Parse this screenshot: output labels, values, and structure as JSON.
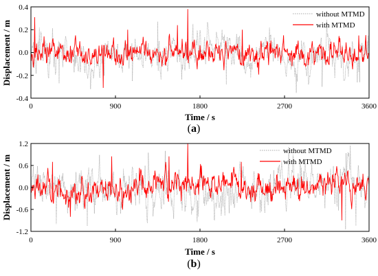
{
  "colors": {
    "without": "#a8a8a8",
    "with": "#ff0000",
    "axis": "#000000"
  },
  "chart_data": [
    {
      "type": "line",
      "caption_pre": "(",
      "caption_letter": "a",
      "caption_post": ")",
      "xlabel": "Time / s",
      "ylabel": "Displacement / m",
      "xlim": [
        0,
        3600
      ],
      "ylim": [
        -0.4,
        0.4
      ],
      "xticks": [
        "0",
        "900",
        "1800",
        "2700",
        "3600"
      ],
      "yticks": [
        "-0.4",
        "-0.2",
        "0.0",
        "0.2",
        "0.4"
      ],
      "grid": false,
      "legend_position": "top-right",
      "amp_without": 0.115,
      "amp_with": 0.072,
      "peaks_with": [
        [
          40,
          0.31
        ],
        [
          770,
          -0.31
        ],
        [
          1670,
          0.38
        ],
        [
          1560,
          0.24
        ],
        [
          1030,
          0.2
        ],
        [
          2250,
          0.2
        ],
        [
          3490,
          0.15
        ]
      ],
      "peaks_without": [
        [
          40,
          0.3
        ],
        [
          300,
          -0.27
        ],
        [
          1080,
          -0.25
        ],
        [
          3100,
          -0.3
        ],
        [
          2080,
          -0.28
        ],
        [
          3500,
          -0.26
        ],
        [
          1350,
          0.27
        ]
      ],
      "series": [
        {
          "name": "without MTMD",
          "style": "dotted"
        },
        {
          "name": "with MTMD",
          "style": "solid"
        }
      ]
    },
    {
      "type": "line",
      "caption_pre": "(",
      "caption_letter": "b",
      "caption_post": ")",
      "xlabel": "Time / s",
      "ylabel": "Displacement / m",
      "xlim": [
        0,
        3600
      ],
      "ylim": [
        -1.2,
        1.2
      ],
      "xticks": [
        "0",
        "900",
        "1800",
        "2700",
        "3600"
      ],
      "yticks": [
        "-1.2",
        "-0.6",
        "0.0",
        "0.6",
        "1.2"
      ],
      "grid": false,
      "legend_position": "top-right",
      "amp_without": 0.42,
      "amp_with": 0.25,
      "peaks_with": [
        [
          860,
          0.85
        ],
        [
          1670,
          1.2
        ],
        [
          1470,
          0.85
        ],
        [
          2240,
          0.7
        ],
        [
          420,
          -0.8
        ],
        [
          3310,
          -0.9
        ],
        [
          230,
          0.7
        ]
      ],
      "peaks_without": [
        [
          3400,
          1.15
        ],
        [
          3350,
          -1.15
        ],
        [
          1250,
          0.95
        ],
        [
          600,
          -1.05
        ],
        [
          3460,
          -1.05
        ],
        [
          1430,
          1.0
        ],
        [
          270,
          -1.0
        ]
      ],
      "series": [
        {
          "name": "without MTMD",
          "style": "dotted"
        },
        {
          "name": "with MTMD",
          "style": "solid"
        }
      ]
    }
  ]
}
